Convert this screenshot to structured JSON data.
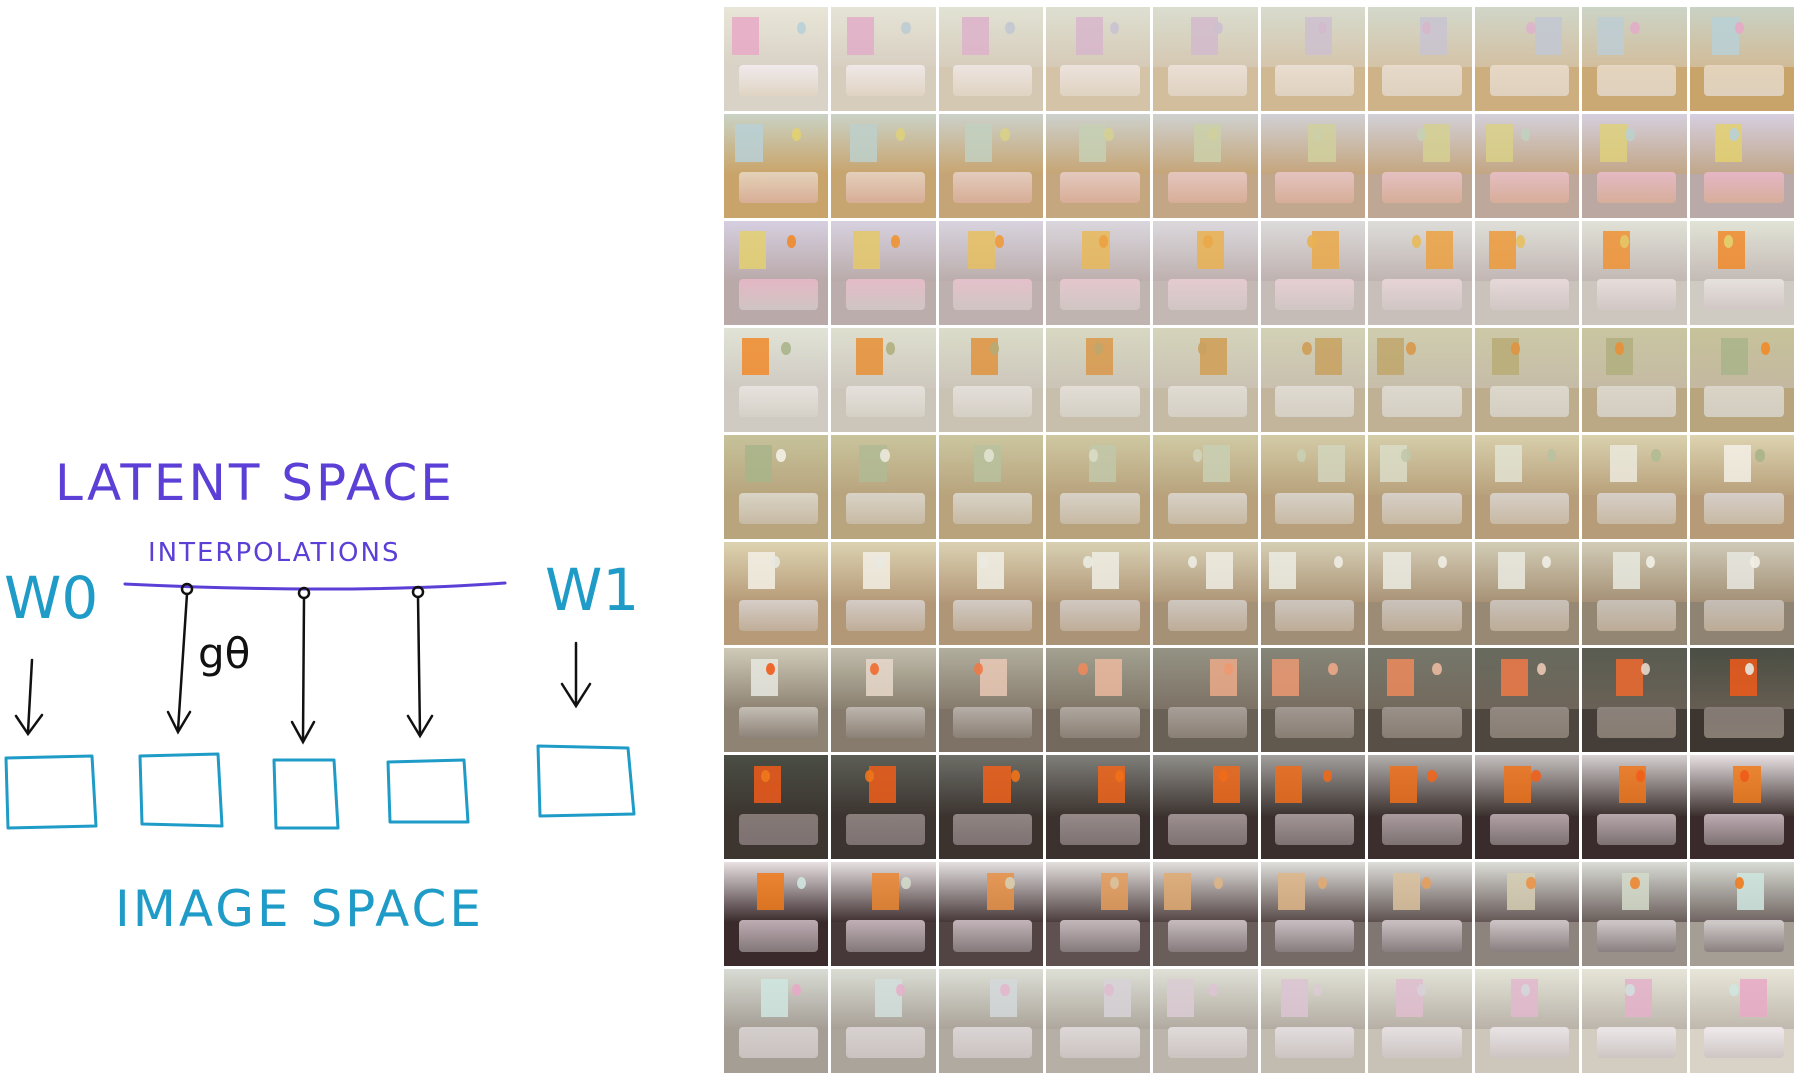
{
  "diagram": {
    "latent_space_label": "LATENT SPACE",
    "interpolations_label": "INTERPOLATIONS",
    "w0_label": "W0",
    "w1_label": "W1",
    "generator_label": "gθ",
    "image_space_label": "IMAGE SPACE",
    "colors": {
      "latent": "#5b3fd6",
      "image": "#1f9bc7",
      "ink": "#111111"
    }
  },
  "grid": {
    "rows": 10,
    "cols": 10,
    "palette": [
      {
        "wall": "#e8e6d8",
        "floor": "#d9d2c6",
        "bed": "#f2ecf0",
        "accent": "#e7a9c6"
      },
      {
        "wall": "#c9d2c4",
        "floor": "#c9a46a",
        "bed": "#e6d6c0",
        "accent": "#b8d0d6"
      },
      {
        "wall": "#d6cfe0",
        "floor": "#b9a9a9",
        "bed": "#e8b8c8",
        "accent": "#e3d070"
      },
      {
        "wall": "#e1e3d6",
        "floor": "#cfcac2",
        "bed": "#e9e4e0",
        "accent": "#f08a2a"
      },
      {
        "wall": "#c6c29a",
        "floor": "#b8a57e",
        "bed": "#dcd8cc",
        "accent": "#a8b48a"
      },
      {
        "wall": "#ddd3b0",
        "floor": "#b79b78",
        "bed": "#d9d2cf",
        "accent": "#f3f0e6"
      },
      {
        "wall": "#cfcab8",
        "floor": "#8f8474",
        "bed": "#c9c3bb",
        "accent": "#e7e8e0"
      },
      {
        "wall": "#4a4e44",
        "floor": "#3c3530",
        "bed": "#8a7f7a",
        "accent": "#f05a1a"
      },
      {
        "wall": "#e8e0e2",
        "floor": "#3a2a2c",
        "bed": "#c9b8bf",
        "accent": "#f07a1a"
      },
      {
        "wall": "#d8dcd4",
        "floor": "#a59e95",
        "bed": "#d8d2d2",
        "accent": "#cfe6e0"
      }
    ]
  }
}
